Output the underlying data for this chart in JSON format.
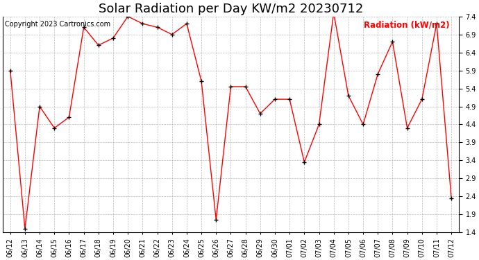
{
  "title": "Solar Radiation per Day KW/m2 20230712",
  "copyright_text": "Copyright 2023 Cartronics.com",
  "legend_label": "Radiation (kW/m2)",
  "dates": [
    "06/12",
    "06/13",
    "06/14",
    "06/15",
    "06/16",
    "06/17",
    "06/18",
    "06/19",
    "06/20",
    "06/21",
    "06/22",
    "06/23",
    "06/24",
    "06/25",
    "06/26",
    "06/27",
    "06/28",
    "06/29",
    "06/30",
    "07/01",
    "07/02",
    "07/03",
    "07/04",
    "07/05",
    "07/06",
    "07/07",
    "07/08",
    "07/09",
    "07/10",
    "07/11",
    "07/12"
  ],
  "values": [
    5.9,
    1.5,
    4.9,
    4.3,
    4.6,
    7.1,
    6.6,
    6.8,
    7.4,
    7.2,
    7.1,
    6.9,
    7.2,
    5.6,
    1.75,
    5.45,
    5.45,
    4.7,
    5.1,
    5.1,
    3.35,
    4.4,
    7.5,
    5.2,
    4.4,
    5.8,
    6.7,
    4.3,
    5.1,
    7.2,
    2.35
  ],
  "line_color": "#ff0000",
  "marker_color": "#000000",
  "background_color": "#ffffff",
  "grid_color": "#aaaaaa",
  "title_color": "#000000",
  "copyright_color": "#000000",
  "legend_color": "#ff0000",
  "ylim": [
    1.4,
    7.4
  ],
  "yticks": [
    1.4,
    1.9,
    2.4,
    2.9,
    3.4,
    3.9,
    4.4,
    4.9,
    5.4,
    5.9,
    6.4,
    6.9,
    7.4
  ],
  "title_fontsize": 13,
  "copyright_fontsize": 7,
  "legend_fontsize": 8.5,
  "tick_fontsize": 7
}
